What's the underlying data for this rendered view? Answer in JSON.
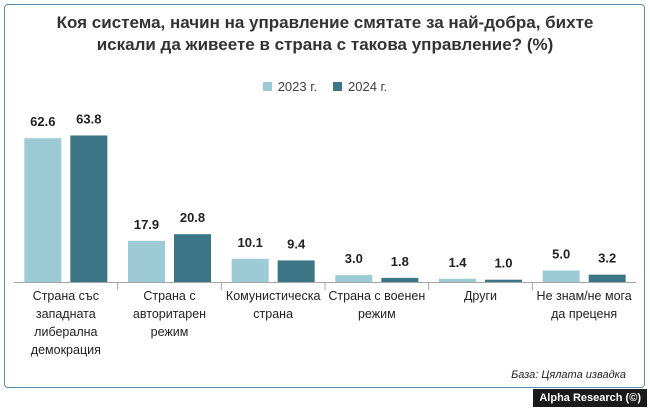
{
  "chart_data": {
    "type": "bar",
    "title_lines": [
      "Коя система, начин на управление смятате за най-добра, бихте",
      "искали да живеете в страна с такова управление? (%)"
    ],
    "categories": [
      [
        "Страна със",
        "западната",
        "либерална",
        "демокрация"
      ],
      [
        "Страна с",
        "авторитарен",
        "режим"
      ],
      [
        "Комунистическа",
        "страна"
      ],
      [
        "Страна с военен",
        "режим"
      ],
      [
        "Други"
      ],
      [
        "Не знам/не мога",
        "да преценя"
      ]
    ],
    "series": [
      {
        "name": "2023 г.",
        "color": "#9ccbd6",
        "values": [
          62.6,
          17.9,
          10.1,
          3.0,
          1.4,
          5.0
        ]
      },
      {
        "name": "2024 г.",
        "color": "#3b7586",
        "values": [
          63.8,
          20.8,
          9.4,
          1.8,
          1.0,
          3.2
        ]
      }
    ],
    "ylim": [
      0,
      64
    ],
    "grid": false,
    "legend_position": "top"
  },
  "source_note": "База: Цялата извадка",
  "credit": "Alpha Research (©)"
}
